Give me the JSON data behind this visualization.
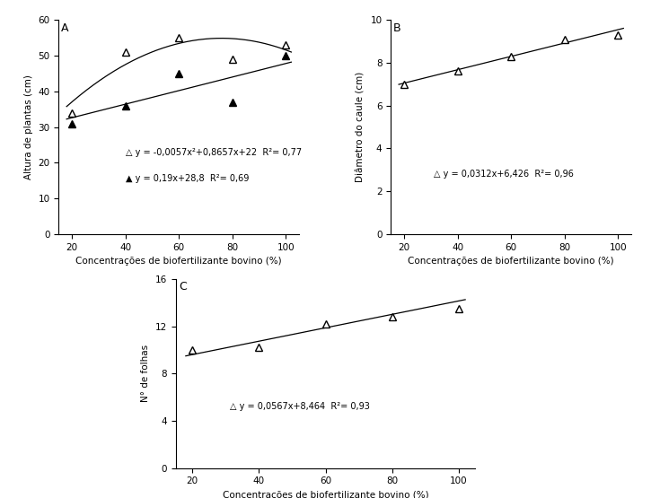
{
  "x_vals": [
    20,
    40,
    60,
    80,
    100
  ],
  "panelA_open_y": [
    34,
    51,
    55,
    49,
    53
  ],
  "panelA_filled_y": [
    31,
    36,
    45,
    37,
    50
  ],
  "panelA_eq_open": "y = -0,0057x²+0,8657x+22  R²= 0,77",
  "panelA_eq_filled": "y = 0,19x+28,8  R²= 0,69",
  "panelA_ylabel": "Altura de plantas (cm)",
  "panelA_xlabel": "Concentrações de biofertilizante bovino (%)",
  "panelA_ylim": [
    0,
    60
  ],
  "panelA_yticks": [
    0,
    10,
    20,
    30,
    40,
    50,
    60
  ],
  "panelA_label": "A",
  "panelB_open_y": [
    7.0,
    7.6,
    8.3,
    9.1,
    9.3
  ],
  "panelB_eq_open": "y = 0,0312x+6,426  R²= 0,96",
  "panelB_ylabel": "Diâmetro do caule (cm)",
  "panelB_xlabel": "Concentrações de biofertilizante bovino (%)",
  "panelB_ylim": [
    0,
    10
  ],
  "panelB_yticks": [
    0,
    2,
    4,
    6,
    8,
    10
  ],
  "panelB_label": "B",
  "panelC_open_y": [
    10.0,
    10.2,
    12.2,
    12.8,
    13.5
  ],
  "panelC_eq_open": "y = 0,0567x+8,464  R²= 0,93",
  "panelC_ylabel": "N° de folhas",
  "panelC_xlabel": "Concentrações de biofertilizante bovino (%)",
  "panelC_ylim": [
    0,
    16
  ],
  "panelC_yticks": [
    0,
    4,
    8,
    12,
    16
  ],
  "panelC_label": "C",
  "marker_open": "^",
  "color_line": "black",
  "marker_size": 6,
  "fontsize_label": 7.5,
  "fontsize_tick": 7.5,
  "fontsize_eq": 7.0
}
